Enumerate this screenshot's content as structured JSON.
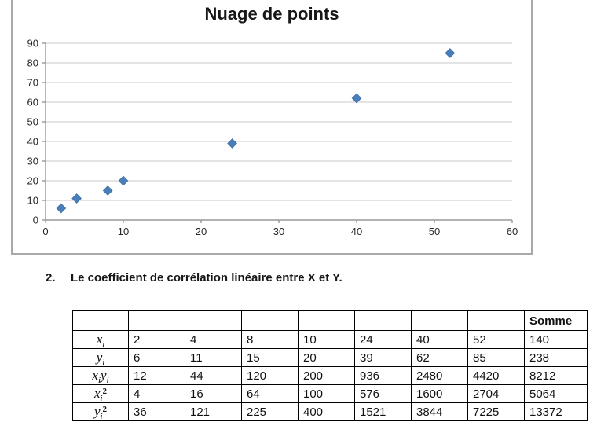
{
  "chart_data": {
    "type": "scatter",
    "title": "Nuage de points",
    "x": [
      2,
      4,
      8,
      10,
      24,
      40,
      52
    ],
    "y": [
      6,
      11,
      15,
      20,
      39,
      62,
      85
    ],
    "xlim": [
      0,
      60
    ],
    "ylim": [
      0,
      90
    ],
    "x_ticks": [
      0,
      10,
      20,
      30,
      40,
      50,
      60
    ],
    "y_ticks": [
      0,
      10,
      20,
      30,
      40,
      50,
      60,
      70,
      80,
      90
    ],
    "grid": "horizontal",
    "legend": "none",
    "marker": "diamond",
    "colors": {
      "marker": "#4A7EBB",
      "marker_edge": "#3C6EA5",
      "gridline": "#C9C9C9",
      "axis": "#999999",
      "chart_border": "#A9A9A9",
      "text": "#262626"
    }
  },
  "section": {
    "number": "2.",
    "text": "Le coefficient de corrélation linéaire entre X et Y."
  },
  "table": {
    "somme_header": "Somme",
    "header": [
      "",
      "",
      "",
      "",
      "",
      "",
      "",
      "",
      "Somme"
    ],
    "rows": [
      {
        "label": {
          "parts": [
            {
              "base": "x",
              "sub": "i"
            }
          ],
          "sup": ""
        },
        "values": [
          "2",
          "4",
          "8",
          "10",
          "24",
          "40",
          "52",
          "140"
        ]
      },
      {
        "label": {
          "parts": [
            {
              "base": "y",
              "sub": "i"
            }
          ],
          "sup": ""
        },
        "values": [
          "6",
          "11",
          "15",
          "20",
          "39",
          "62",
          "85",
          "238"
        ]
      },
      {
        "label": {
          "parts": [
            {
              "base": "x",
              "sub": "i"
            },
            {
              "base": "y",
              "sub": "i"
            }
          ],
          "sup": ""
        },
        "values": [
          "12",
          "44",
          "120",
          "200",
          "936",
          "2480",
          "4420",
          "8212"
        ]
      },
      {
        "label": {
          "parts": [
            {
              "base": "x",
              "sub": "i"
            }
          ],
          "sup": "2"
        },
        "values": [
          "4",
          "16",
          "64",
          "100",
          "576",
          "1600",
          "2704",
          "5064"
        ]
      },
      {
        "label": {
          "parts": [
            {
              "base": "y",
              "sub": "i"
            }
          ],
          "sup": "2"
        },
        "values": [
          "36",
          "121",
          "225",
          "400",
          "1521",
          "3844",
          "7225",
          "13372"
        ]
      }
    ]
  }
}
